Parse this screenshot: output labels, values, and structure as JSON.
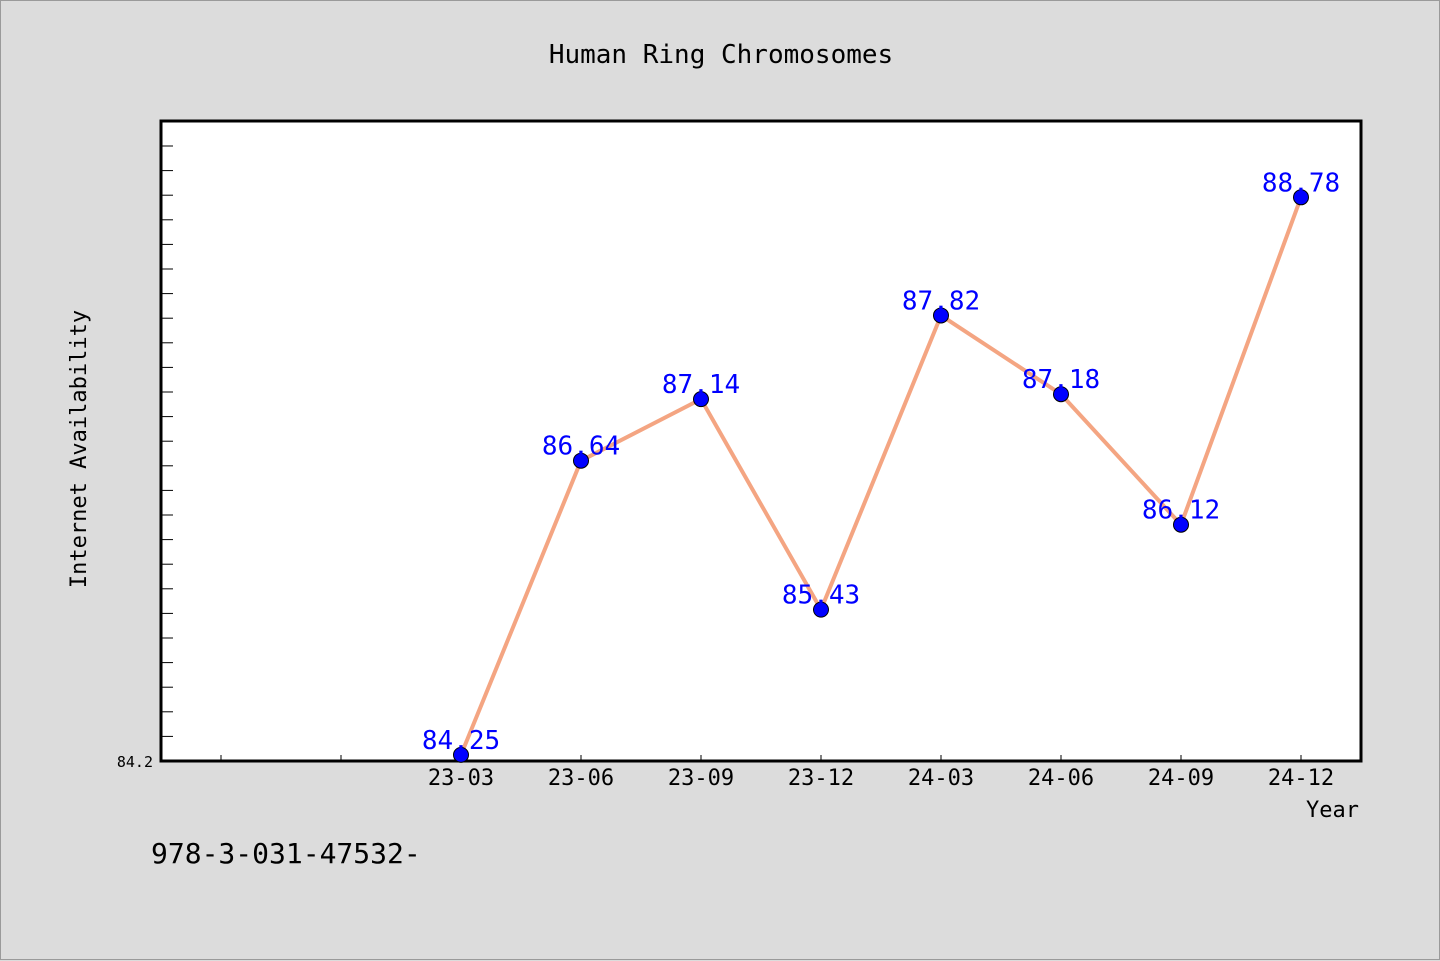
{
  "chart_data": {
    "type": "line",
    "title": "Human Ring Chromosomes",
    "xlabel": "Year",
    "ylabel": "Internet Availability",
    "categories": [
      "23-03",
      "23-06",
      "23-09",
      "23-12",
      "24-03",
      "24-06",
      "24-09",
      "24-12"
    ],
    "series": [
      {
        "values": [
          84.25,
          86.64,
          87.14,
          85.43,
          87.82,
          87.18,
          86.12,
          88.78
        ],
        "labels": [
          "84.25",
          "86.64",
          "87.14",
          "85.43",
          "87.82",
          "87.18",
          "86.12",
          "88.78"
        ]
      }
    ],
    "ylim": [
      84.2,
      89.4
    ],
    "y_tick_labels": [
      "84.2"
    ],
    "grid": false,
    "line_color": "#f4a582",
    "marker_color": "#0000ff",
    "label_color": "#0000ff",
    "plot_background": "#ffffff",
    "page_background": "#dcdcdc"
  },
  "footnote": "978-3-031-47532-"
}
